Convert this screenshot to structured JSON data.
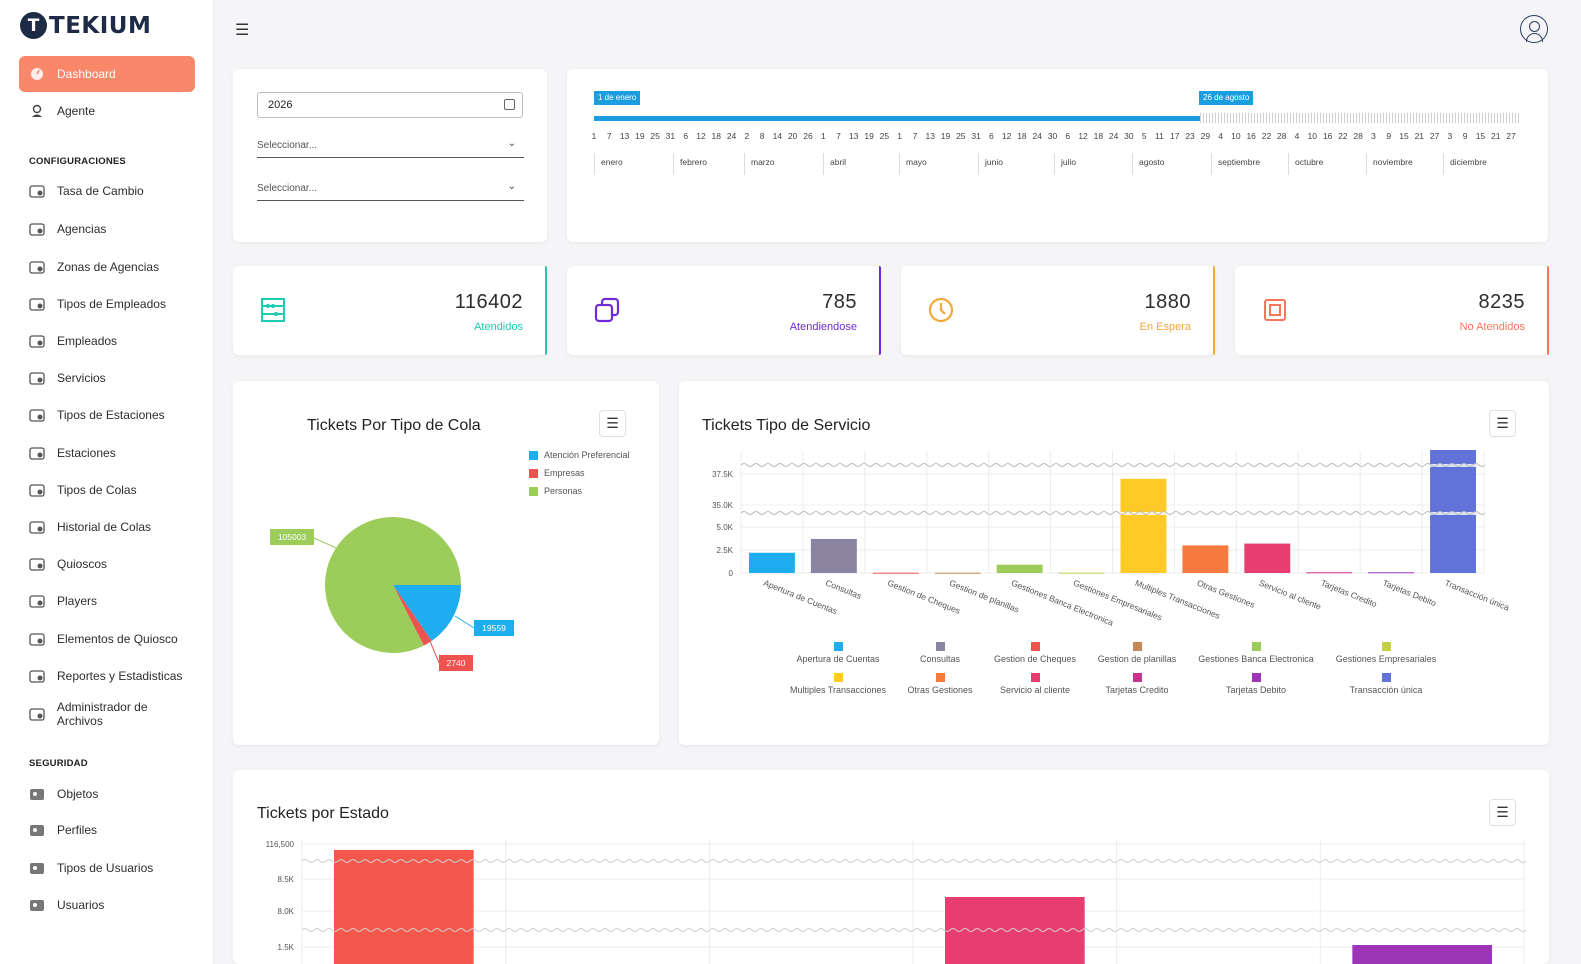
{
  "app": {
    "logo_text": "TEKIUM"
  },
  "sidebar": {
    "dashboard": "Dashboard",
    "agente": "Agente",
    "config_title": "CONFIGURACIONES",
    "config_items": [
      "Tasa de Cambio",
      "Agencias",
      "Zonas de Agencias",
      "Tipos de Empleados",
      "Empleados",
      "Servicios",
      "Tipos de Estaciones",
      "Estaciones",
      "Tipos de Colas",
      "Historial de Colas",
      "Quioscos",
      "Players",
      "Elementos de Quiosco",
      "Reportes y Estadisticas",
      "Administrador de Archivos"
    ],
    "security_title": "SEGURIDAD",
    "security_items": [
      "Objetos",
      "Perfiles",
      "Tipos de Usuarios",
      "Usuarios"
    ]
  },
  "filters": {
    "year": "2026",
    "select1_placeholder": "Seleccionar...",
    "select2_placeholder": "Seleccionar..."
  },
  "timeline": {
    "start_label": "1 de enero",
    "current_label": "26 de agosto",
    "days": [
      "1",
      "7",
      "13",
      "19",
      "25",
      "31",
      "6",
      "12",
      "18",
      "24",
      "2",
      "8",
      "14",
      "20",
      "26",
      "1",
      "7",
      "13",
      "19",
      "25",
      "1",
      "7",
      "13",
      "19",
      "25",
      "31",
      "6",
      "12",
      "18",
      "24",
      "30",
      "6",
      "12",
      "18",
      "24",
      "30",
      "5",
      "11",
      "17",
      "23",
      "29",
      "4",
      "10",
      "16",
      "22",
      "28",
      "4",
      "10",
      "16",
      "22",
      "28",
      "3",
      "9",
      "15",
      "21",
      "27",
      "3",
      "9",
      "15",
      "21",
      "27"
    ],
    "months": [
      "enero",
      "febrero",
      "marzo",
      "abril",
      "mayo",
      "junio",
      "julio",
      "agosto",
      "septiembre",
      "octubre",
      "noviembre",
      "diciembre"
    ]
  },
  "stats": [
    {
      "value": "116402",
      "label": "Atendidos",
      "color": "#1ecbb0",
      "icon": "abacus-icon"
    },
    {
      "value": "785",
      "label": "Atendiendose",
      "color": "#6f2bd8",
      "icon": "copy-icon"
    },
    {
      "value": "1880",
      "label": "En Espera",
      "color": "#f3a83b",
      "icon": "clock-icon"
    },
    {
      "value": "8235",
      "label": "No Atendidos",
      "color": "#f6765a",
      "icon": "stop-icon"
    }
  ],
  "pie_card": {
    "title": "Tickets Por Tipo de Cola"
  },
  "service_card": {
    "title": "Tickets Tipo de Servicio"
  },
  "status_card": {
    "title": "Tickets por Estado"
  },
  "chart_data": [
    {
      "type": "pie",
      "title": "Tickets Por Tipo de Cola",
      "categories": [
        "Atención Preferencial",
        "Empresas",
        "Personas"
      ],
      "values": [
        19559,
        2740,
        105003
      ],
      "colors": [
        "#1eaef0",
        "#ef5350",
        "#9ccc5a"
      ],
      "legend": "top-right"
    },
    {
      "type": "bar",
      "title": "Tickets Tipo de Servicio",
      "categories": [
        "Apertura de Cuentas",
        "Consultas",
        "Gestion de Cheques",
        "Gestion de planillas",
        "Gestiones Banca Electronica",
        "Gestiones Empresariales",
        "Multiples Transacciones",
        "Otras Gestiones",
        "Servicio al cliente",
        "Tarjetas Credito",
        "Tarjetas Debito",
        "Transacción única"
      ],
      "values": [
        2200,
        3700,
        30,
        30,
        900,
        30,
        37000,
        3000,
        3200,
        80,
        80,
        40000
      ],
      "colors": [
        "#1eaef0",
        "#8a84a0",
        "#ef5350",
        "#c48a55",
        "#9ccc5a",
        "#c5d046",
        "#ffc928",
        "#f57a3d",
        "#e83e6f",
        "#c2358f",
        "#9c35b8",
        "#6173d8"
      ],
      "yticks": [
        "37.5K",
        "35.0K",
        "5.0K",
        "2.5K",
        "0"
      ],
      "axis_breaks": true,
      "grid": true,
      "legend": "bottom"
    },
    {
      "type": "bar",
      "title": "Tickets por Estado",
      "categories": [
        "",
        "",
        "",
        "",
        "",
        ""
      ],
      "values": [
        116402,
        0,
        0,
        8235,
        0,
        1880
      ],
      "colors": [
        "#f4584c",
        "#f4584c",
        "#f4584c",
        "#e83e6f",
        "#e83e6f",
        "#9c35b8"
      ],
      "yticks": [
        "116,500",
        "8.5K",
        "8.0K",
        "1.5K"
      ],
      "axis_breaks": true,
      "grid": true
    }
  ]
}
